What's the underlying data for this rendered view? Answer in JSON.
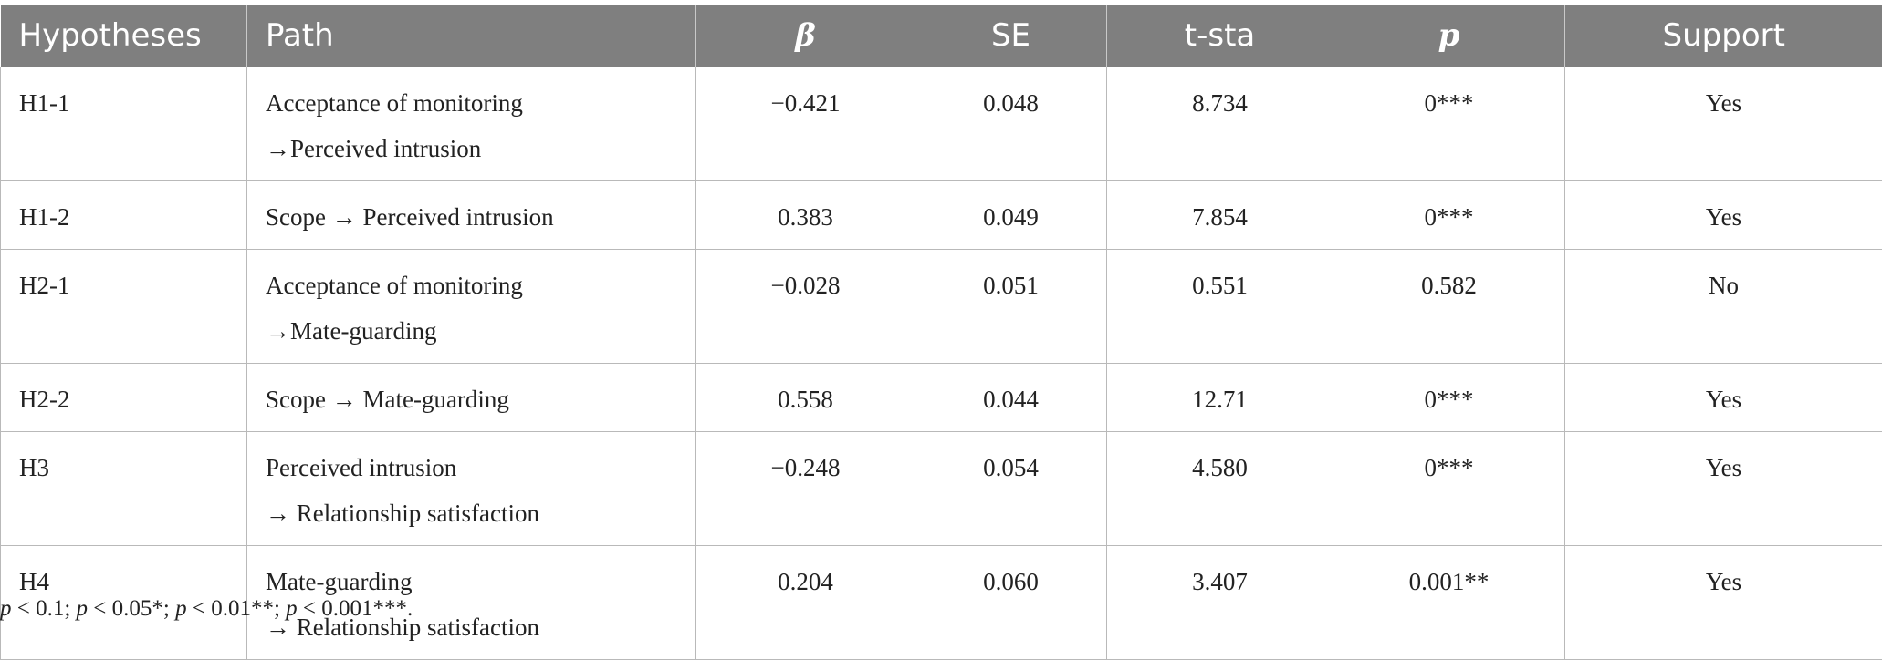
{
  "table": {
    "headers": [
      "Hypotheses",
      "Path",
      "β",
      "SE",
      "t-sta",
      "p",
      "Support"
    ],
    "rows": [
      {
        "hypothesis": "H1-1",
        "path": [
          "Acceptance of monitoring",
          "→Perceived intrusion"
        ],
        "beta": "−0.421",
        "se": "0.048",
        "t": "8.734",
        "p": "0***",
        "support": "Yes"
      },
      {
        "hypothesis": "H1-2",
        "path": [
          "Scope → Perceived intrusion"
        ],
        "beta": "0.383",
        "se": "0.049",
        "t": "7.854",
        "p": "0***",
        "support": "Yes"
      },
      {
        "hypothesis": "H2-1",
        "path": [
          "Acceptance of monitoring",
          "→Mate-guarding"
        ],
        "beta": "−0.028",
        "se": "0.051",
        "t": "0.551",
        "p": "0.582",
        "support": "No"
      },
      {
        "hypothesis": "H2-2",
        "path": [
          "Scope → Mate-guarding"
        ],
        "beta": "0.558",
        "se": "0.044",
        "t": "12.71",
        "p": "0***",
        "support": "Yes"
      },
      {
        "hypothesis": "H3",
        "path": [
          "Perceived intrusion",
          "→ Relationship satisfaction"
        ],
        "beta": "−0.248",
        "se": "0.054",
        "t": "4.580",
        "p": "0***",
        "support": "Yes"
      },
      {
        "hypothesis": "H4",
        "path": [
          "Mate-guarding",
          "→ Relationship satisfaction"
        ],
        "beta": "0.204",
        "se": "0.060",
        "t": "3.407",
        "p": "0.001**",
        "support": "Yes"
      }
    ]
  },
  "footnote": {
    "p": "p",
    "parts": [
      " < 0.1; ",
      " < 0.05*; ",
      " < 0.01**; ",
      " < 0.001***."
    ]
  }
}
